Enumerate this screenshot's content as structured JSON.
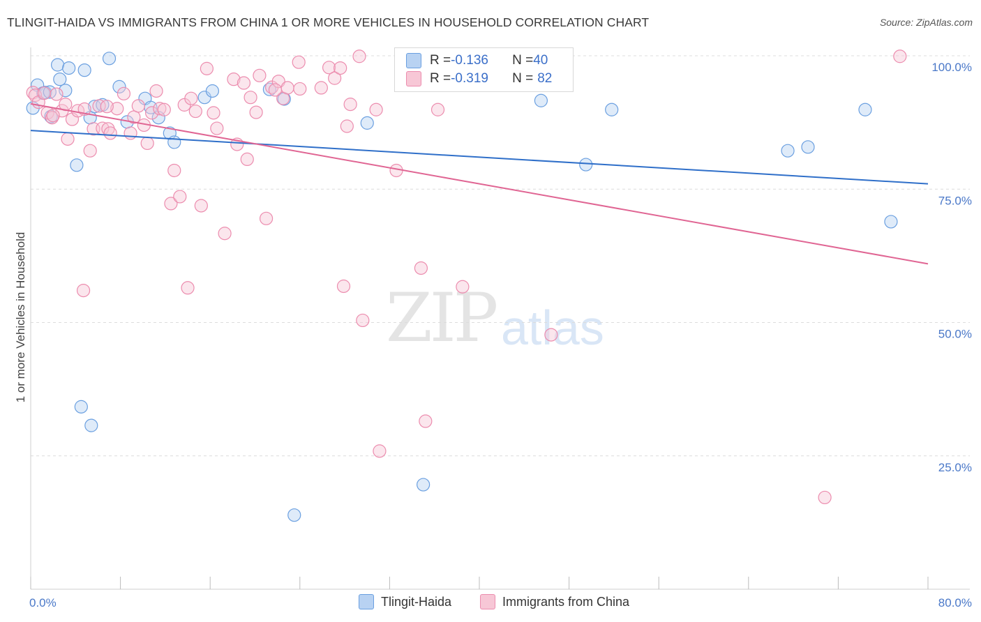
{
  "header": {
    "title": "TLINGIT-HAIDA VS IMMIGRANTS FROM CHINA 1 OR MORE VEHICLES IN HOUSEHOLD CORRELATION CHART",
    "source": "Source: ZipAtlas.com"
  },
  "watermark": {
    "zip": "ZIP",
    "atlas": "atlas"
  },
  "legend": {
    "rows": [
      {
        "r_label": "R = ",
        "r_value": "-0.136",
        "n_label": "N = ",
        "n_value": "40"
      },
      {
        "r_label": "R = ",
        "r_value": "-0.319",
        "n_label": "N = ",
        "n_value": "82"
      }
    ]
  },
  "chart_data": {
    "type": "scatter",
    "title": "TLINGIT-HAIDA VS IMMIGRANTS FROM CHINA 1 OR MORE VEHICLES IN HOUSEHOLD CORRELATION CHART",
    "xlabel": "",
    "ylabel": "1 or more Vehicles in Household",
    "xlim": [
      0,
      80
    ],
    "ylim": [
      0,
      100
    ],
    "x_tick_labels": [
      "0.0%",
      "80.0%"
    ],
    "y_ticks": [
      25,
      50,
      75,
      100
    ],
    "y_tick_labels": [
      "25.0%",
      "50.0%",
      "75.0%",
      "100.0%"
    ],
    "grid": true,
    "colors": {
      "tlingit": "#6a9fe0",
      "tlingit_fill": "#b8d2f2",
      "china": "#ec8cae",
      "china_fill": "#f7c7d6",
      "tlingit_line": "#2f6fc9",
      "china_line": "#e06593"
    },
    "series": [
      {
        "name": "Tlingit-Haida",
        "r": -0.136,
        "n": 40,
        "trend": {
          "x": [
            0,
            80
          ],
          "y": [
            86,
            76
          ]
        },
        "points": [
          [
            0.2,
            90.2
          ],
          [
            0.6,
            94.5
          ],
          [
            1.1,
            93.0
          ],
          [
            1.3,
            93.1
          ],
          [
            1.8,
            88.6
          ],
          [
            2.4,
            98.3
          ],
          [
            2.6,
            95.6
          ],
          [
            3.1,
            93.5
          ],
          [
            3.4,
            97.7
          ],
          [
            4.1,
            79.5
          ],
          [
            4.8,
            97.3
          ],
          [
            5.3,
            88.4
          ],
          [
            5.7,
            90.5
          ],
          [
            6.4,
            90.8
          ],
          [
            7.0,
            99.5
          ],
          [
            7.9,
            94.2
          ],
          [
            8.6,
            87.6
          ],
          [
            10.2,
            92.0
          ],
          [
            10.7,
            90.3
          ],
          [
            11.4,
            88.4
          ],
          [
            12.4,
            85.5
          ],
          [
            12.8,
            83.8
          ],
          [
            15.5,
            92.2
          ],
          [
            16.2,
            93.4
          ],
          [
            21.3,
            93.7
          ],
          [
            22.6,
            91.9
          ],
          [
            30.0,
            87.4
          ],
          [
            34.2,
            96.7
          ],
          [
            45.5,
            91.6
          ],
          [
            49.5,
            79.6
          ],
          [
            51.8,
            89.9
          ],
          [
            67.5,
            82.2
          ],
          [
            69.3,
            82.9
          ],
          [
            74.4,
            89.9
          ],
          [
            76.7,
            68.9
          ],
          [
            4.5,
            34.2
          ],
          [
            5.4,
            30.7
          ],
          [
            23.5,
            13.9
          ],
          [
            35.0,
            19.6
          ],
          [
            1.7,
            93.2
          ]
        ]
      },
      {
        "name": "Immigrants from China",
        "r": -0.319,
        "n": 82,
        "trend": {
          "x": [
            0,
            80
          ],
          "y": [
            91,
            61
          ]
        },
        "points": [
          [
            0.2,
            93.1
          ],
          [
            0.4,
            92.6
          ],
          [
            0.7,
            91.3
          ],
          [
            1.2,
            93.0
          ],
          [
            1.5,
            89.3
          ],
          [
            1.9,
            88.4
          ],
          [
            2.3,
            92.8
          ],
          [
            2.8,
            89.7
          ],
          [
            3.1,
            90.9
          ],
          [
            3.3,
            84.4
          ],
          [
            3.7,
            88.1
          ],
          [
            4.2,
            89.7
          ],
          [
            4.8,
            90.0
          ],
          [
            5.3,
            82.2
          ],
          [
            5.6,
            86.3
          ],
          [
            6.1,
            90.6
          ],
          [
            6.4,
            86.4
          ],
          [
            6.9,
            86.3
          ],
          [
            7.1,
            85.5
          ],
          [
            7.7,
            90.1
          ],
          [
            8.3,
            92.9
          ],
          [
            8.9,
            85.5
          ],
          [
            9.2,
            88.5
          ],
          [
            9.6,
            90.6
          ],
          [
            10.1,
            87.0
          ],
          [
            10.4,
            83.6
          ],
          [
            10.8,
            89.3
          ],
          [
            11.2,
            93.4
          ],
          [
            11.5,
            90.1
          ],
          [
            11.9,
            89.9
          ],
          [
            12.5,
            72.3
          ],
          [
            12.8,
            78.5
          ],
          [
            13.3,
            73.6
          ],
          [
            13.7,
            90.8
          ],
          [
            14.3,
            92.0
          ],
          [
            14.7,
            89.6
          ],
          [
            15.2,
            71.9
          ],
          [
            15.7,
            97.6
          ],
          [
            16.3,
            89.3
          ],
          [
            16.6,
            86.4
          ],
          [
            17.3,
            66.7
          ],
          [
            18.1,
            95.6
          ],
          [
            18.4,
            83.4
          ],
          [
            19.0,
            94.9
          ],
          [
            19.3,
            80.6
          ],
          [
            19.6,
            92.2
          ],
          [
            20.1,
            89.4
          ],
          [
            20.4,
            96.3
          ],
          [
            21.0,
            69.5
          ],
          [
            21.5,
            94.1
          ],
          [
            22.1,
            95.2
          ],
          [
            22.5,
            92.0
          ],
          [
            22.9,
            94.0
          ],
          [
            23.9,
            98.8
          ],
          [
            25.9,
            94.0
          ],
          [
            26.6,
            97.8
          ],
          [
            27.1,
            95.8
          ],
          [
            27.6,
            97.7
          ],
          [
            28.5,
            90.9
          ],
          [
            28.2,
            86.8
          ],
          [
            29.3,
            99.9
          ],
          [
            30.8,
            89.9
          ],
          [
            32.6,
            78.5
          ],
          [
            33.4,
            99.9
          ],
          [
            34.1,
            96.8
          ],
          [
            34.8,
            60.2
          ],
          [
            35.2,
            31.5
          ],
          [
            36.3,
            89.9
          ],
          [
            38.5,
            56.7
          ],
          [
            29.6,
            50.4
          ],
          [
            31.1,
            25.9
          ],
          [
            27.9,
            56.8
          ],
          [
            46.4,
            47.7
          ],
          [
            70.8,
            17.2
          ],
          [
            77.5,
            99.9
          ],
          [
            14.0,
            56.5
          ],
          [
            4.7,
            56.0
          ],
          [
            2.0,
            88.8
          ],
          [
            6.8,
            90.5
          ],
          [
            21.8,
            93.6
          ],
          [
            24.0,
            93.8
          ],
          [
            36.0,
            97.0
          ]
        ]
      }
    ]
  },
  "bottom_legend": {
    "items": [
      {
        "label": "Tlingit-Haida"
      },
      {
        "label": "Immigrants from China"
      }
    ]
  }
}
